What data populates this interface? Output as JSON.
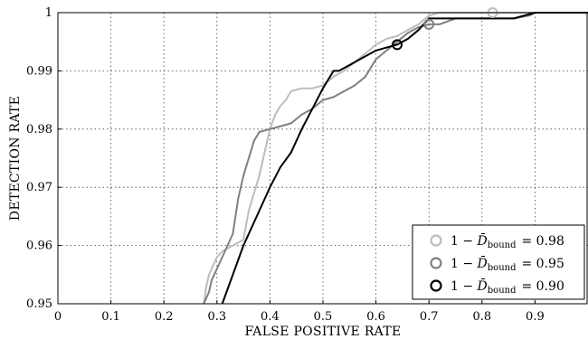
{
  "chart_data": {
    "type": "line",
    "title": "",
    "xlabel": "FALSE POSITIVE RATE",
    "ylabel": "DETECTION RATE",
    "xlim": [
      0,
      1
    ],
    "ylim": [
      0.95,
      1.0
    ],
    "xticks": [
      "0",
      "0.1",
      "0.2",
      "0.3",
      "0.4",
      "0.5",
      "0.6",
      "0.7",
      "0.8",
      "0.9"
    ],
    "yticks": [
      "0.95",
      "0.96",
      "0.97",
      "0.98",
      "0.99",
      "1"
    ],
    "grid": true,
    "legend_position": "bottom-right",
    "series": [
      {
        "name_prefix": "1 − ",
        "name_symbol": "D̄",
        "name_sub": "bound",
        "name_value": "= 0.98",
        "color": "#bdbdbd",
        "marker_x": 0.82,
        "marker_y": 1.0,
        "x": [
          0.275,
          0.28,
          0.285,
          0.29,
          0.295,
          0.3,
          0.31,
          0.32,
          0.33,
          0.35,
          0.36,
          0.37,
          0.38,
          0.39,
          0.4,
          0.41,
          0.42,
          0.43,
          0.44,
          0.46,
          0.48,
          0.5,
          0.52,
          0.54,
          0.56,
          0.58,
          0.6,
          0.62,
          0.64,
          0.66,
          0.68,
          0.7,
          0.72,
          0.75,
          0.78,
          0.82,
          0.86,
          0.9,
          1.0
        ],
        "y": [
          0.95,
          0.953,
          0.955,
          0.956,
          0.957,
          0.958,
          0.959,
          0.9595,
          0.96,
          0.961,
          0.966,
          0.969,
          0.972,
          0.976,
          0.98,
          0.9825,
          0.984,
          0.985,
          0.9865,
          0.987,
          0.987,
          0.9875,
          0.989,
          0.99,
          0.9915,
          0.993,
          0.9945,
          0.9955,
          0.996,
          0.997,
          0.998,
          0.9995,
          1.0,
          1.0,
          1.0,
          1.0,
          1.0,
          1.0,
          1.0
        ]
      },
      {
        "name_prefix": "1 − ",
        "name_symbol": "D̄",
        "name_sub": "bound",
        "name_value": "= 0.95",
        "color": "#808080",
        "marker_x": 0.7,
        "marker_y": 0.998,
        "x": [
          0.275,
          0.28,
          0.285,
          0.29,
          0.3,
          0.305,
          0.31,
          0.32,
          0.33,
          0.34,
          0.345,
          0.35,
          0.36,
          0.37,
          0.38,
          0.4,
          0.42,
          0.44,
          0.46,
          0.48,
          0.5,
          0.52,
          0.54,
          0.56,
          0.58,
          0.6,
          0.62,
          0.64,
          0.66,
          0.68,
          0.7,
          0.72,
          0.75,
          0.78,
          0.82,
          0.86,
          0.89,
          0.9,
          1.0
        ],
        "y": [
          0.95,
          0.951,
          0.952,
          0.954,
          0.956,
          0.957,
          0.958,
          0.96,
          0.962,
          0.968,
          0.97,
          0.972,
          0.975,
          0.978,
          0.9795,
          0.98,
          0.9805,
          0.981,
          0.9825,
          0.9835,
          0.985,
          0.9855,
          0.9865,
          0.9875,
          0.989,
          0.992,
          0.9935,
          0.995,
          0.9965,
          0.9975,
          0.998,
          0.998,
          0.999,
          0.999,
          0.999,
          0.999,
          0.9995,
          1.0,
          1.0
        ]
      },
      {
        "name_prefix": "1 − ",
        "name_symbol": "D̄",
        "name_sub": "bound",
        "name_value": "= 0.90",
        "color": "#000000",
        "marker_x": 0.64,
        "marker_y": 0.9945,
        "x": [
          0.31,
          0.35,
          0.38,
          0.4,
          0.42,
          0.44,
          0.46,
          0.48,
          0.5,
          0.52,
          0.53,
          0.55,
          0.58,
          0.6,
          0.62,
          0.64,
          0.66,
          0.68,
          0.7,
          0.72,
          0.75,
          0.78,
          0.82,
          0.86,
          0.9,
          1.0
        ],
        "y": [
          0.95,
          0.96,
          0.966,
          0.97,
          0.9735,
          0.976,
          0.98,
          0.9835,
          0.987,
          0.99,
          0.99,
          0.991,
          0.9925,
          0.9935,
          0.994,
          0.9945,
          0.9955,
          0.997,
          0.999,
          0.999,
          0.999,
          0.999,
          0.999,
          0.999,
          1.0,
          1.0
        ]
      }
    ]
  }
}
